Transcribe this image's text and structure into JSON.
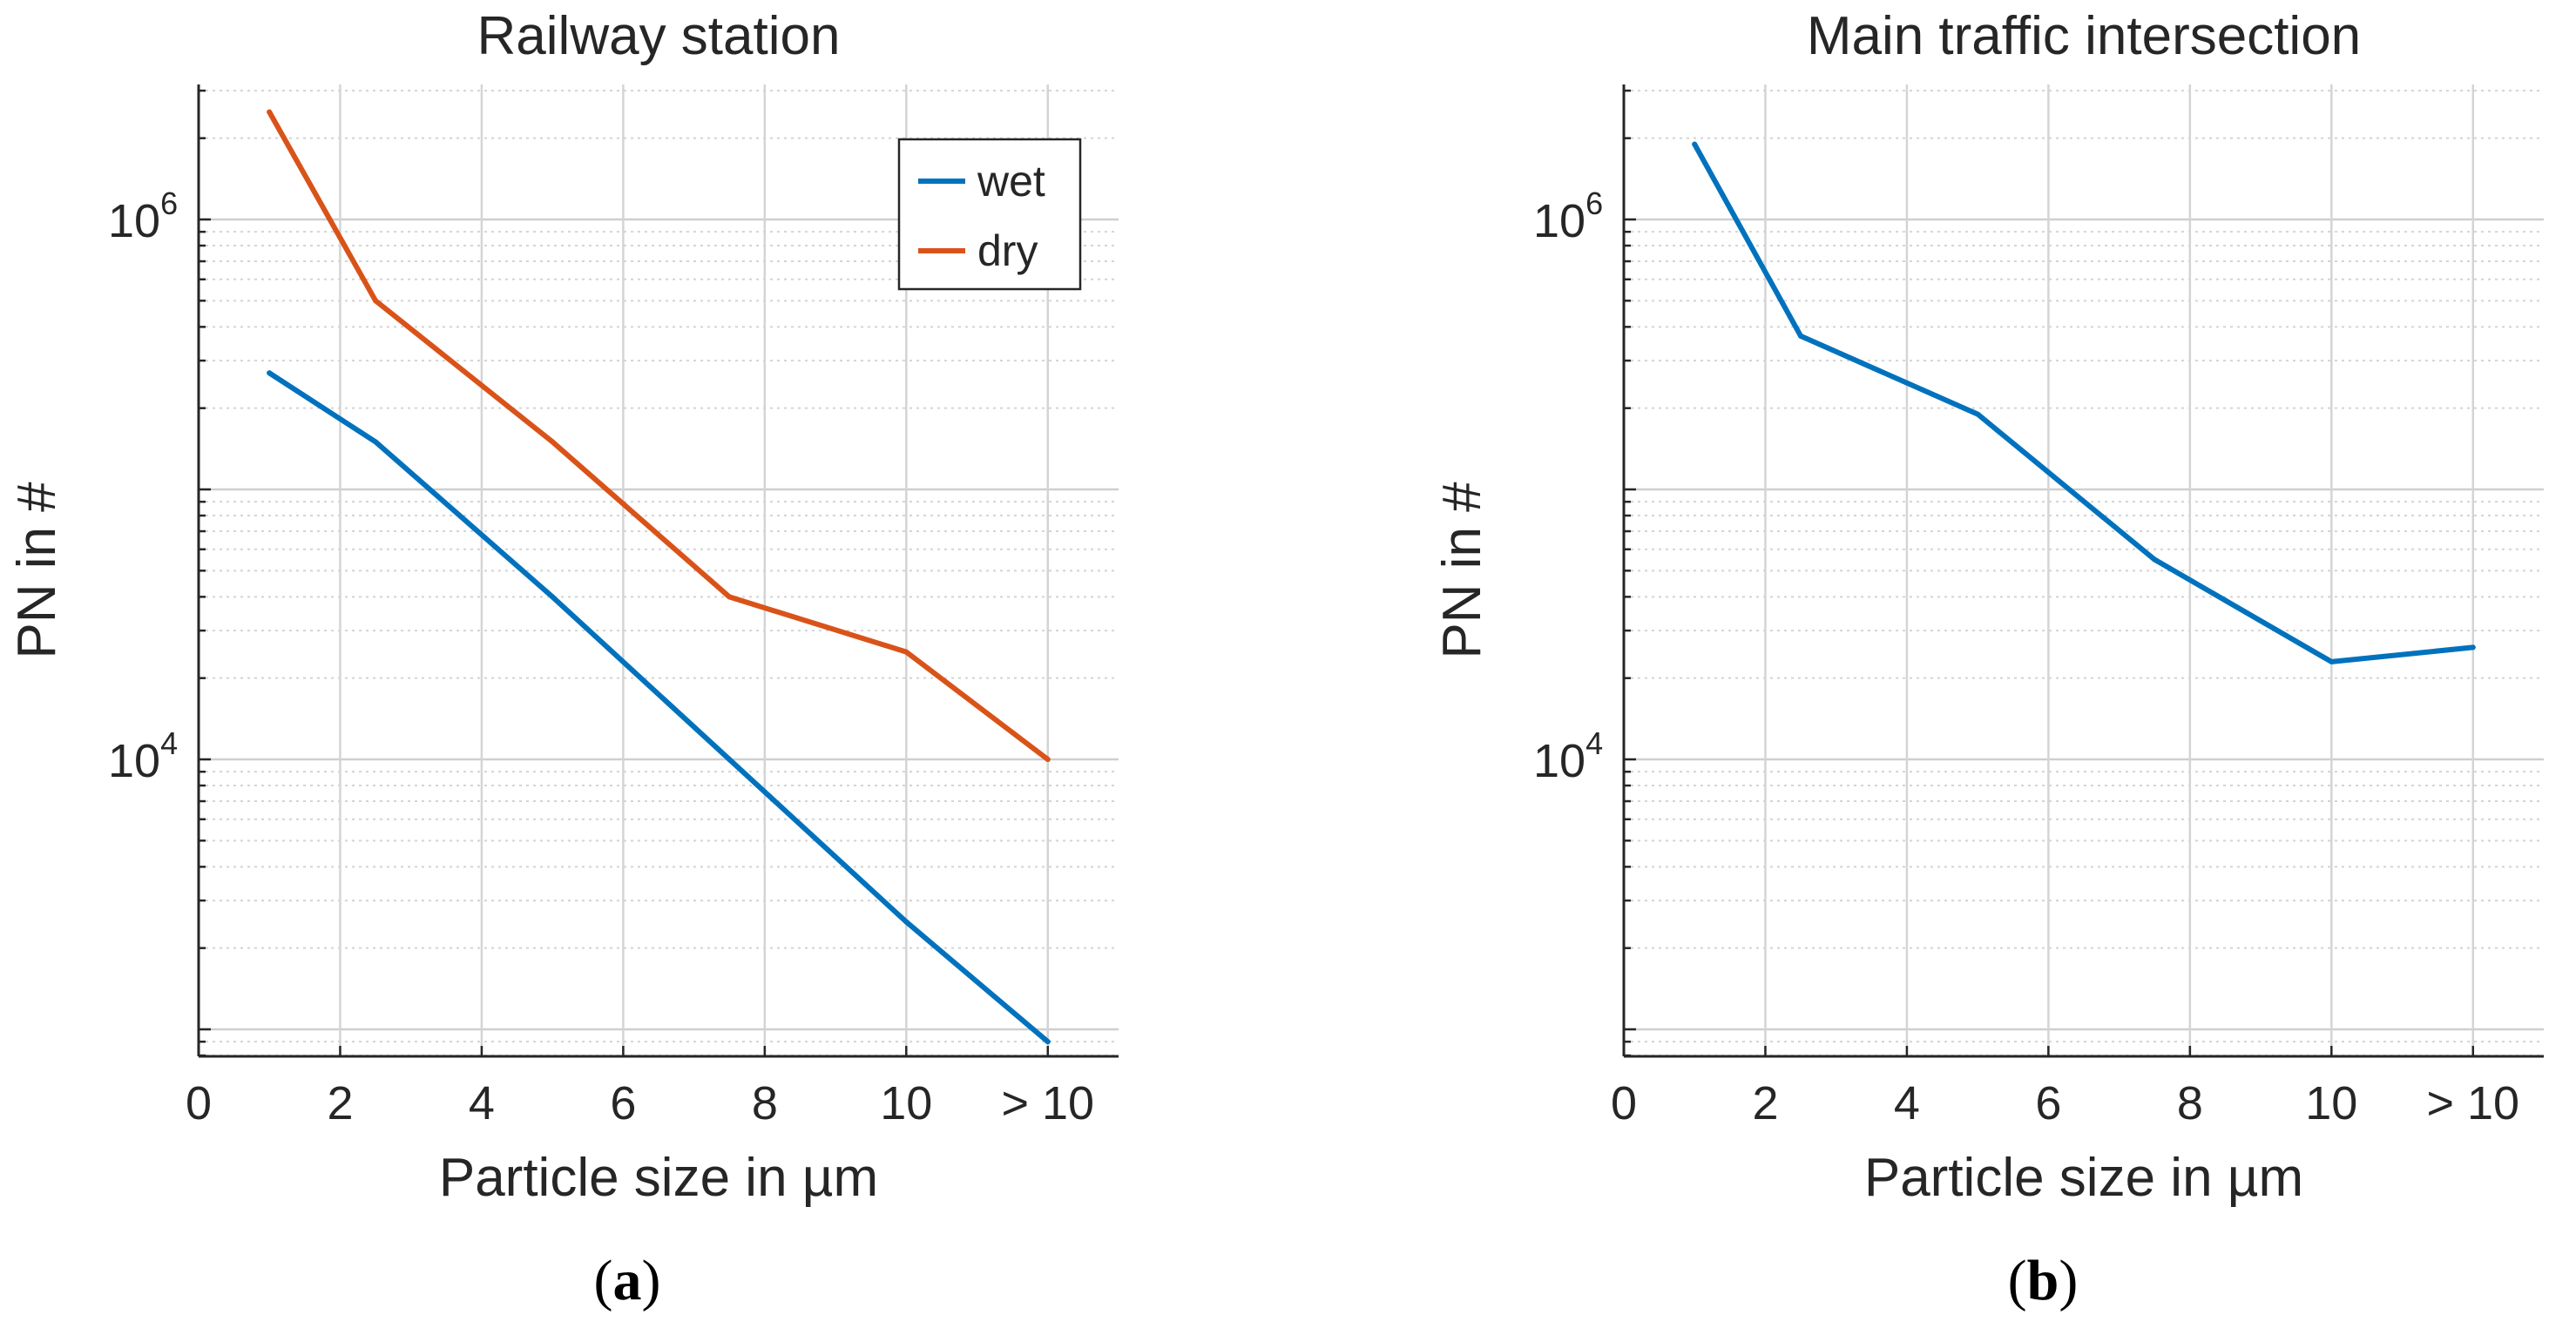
{
  "chart_data": [
    {
      "type": "line",
      "title": "Railway station",
      "xlabel": "Particle size in µm",
      "ylabel": "PN in #",
      "yscale": "log",
      "xlim": [
        0,
        13
      ],
      "ylim_log10": [
        2.9,
        6.5
      ],
      "grid": true,
      "x_ticks": [
        {
          "value": 0,
          "label": "0"
        },
        {
          "value": 2,
          "label": "2"
        },
        {
          "value": 4,
          "label": "4"
        },
        {
          "value": 6,
          "label": "6"
        },
        {
          "value": 8,
          "label": "8"
        },
        {
          "value": 10,
          "label": "10"
        },
        {
          "value": 12,
          "label": "> 10"
        }
      ],
      "y_ticks": [
        {
          "value": 10000,
          "base": "10",
          "exp": "4"
        },
        {
          "value": 1000000,
          "base": "10",
          "exp": "6"
        }
      ],
      "legend": {
        "position": "top-right"
      },
      "series": [
        {
          "name": "wet",
          "color": "#0072BD",
          "x": [
            1,
            2.5,
            5,
            7.5,
            10,
            12
          ],
          "y": [
            270000,
            150000,
            40000,
            10000,
            2500,
            900
          ]
        },
        {
          "name": "dry",
          "color": "#D95319",
          "x": [
            1,
            2.5,
            5,
            7.5,
            10,
            12
          ],
          "y": [
            2500000,
            500000,
            150000,
            40000,
            25000,
            10000
          ]
        }
      ],
      "panel_label": {
        "open": "(",
        "letter": "a",
        "close": ")"
      }
    },
    {
      "type": "line",
      "title": "Main traffic intersection",
      "xlabel": "Particle size in µm",
      "ylabel": "PN in #",
      "yscale": "log",
      "xlim": [
        0,
        13
      ],
      "ylim_log10": [
        2.9,
        6.5
      ],
      "grid": true,
      "x_ticks": [
        {
          "value": 0,
          "label": "0"
        },
        {
          "value": 2,
          "label": "2"
        },
        {
          "value": 4,
          "label": "4"
        },
        {
          "value": 6,
          "label": "6"
        },
        {
          "value": 8,
          "label": "8"
        },
        {
          "value": 10,
          "label": "10"
        },
        {
          "value": 12,
          "label": "> 10"
        }
      ],
      "y_ticks": [
        {
          "value": 10000,
          "base": "10",
          "exp": "4"
        },
        {
          "value": 1000000,
          "base": "10",
          "exp": "6"
        }
      ],
      "series": [
        {
          "name": "wet",
          "color": "#0072BD",
          "x": [
            1,
            2.5,
            5,
            7.5,
            10,
            12
          ],
          "y": [
            1900000,
            370000,
            190000,
            55000,
            23000,
            26000
          ]
        }
      ],
      "panel_label": {
        "open": "(",
        "letter": "b",
        "close": ")"
      }
    }
  ]
}
